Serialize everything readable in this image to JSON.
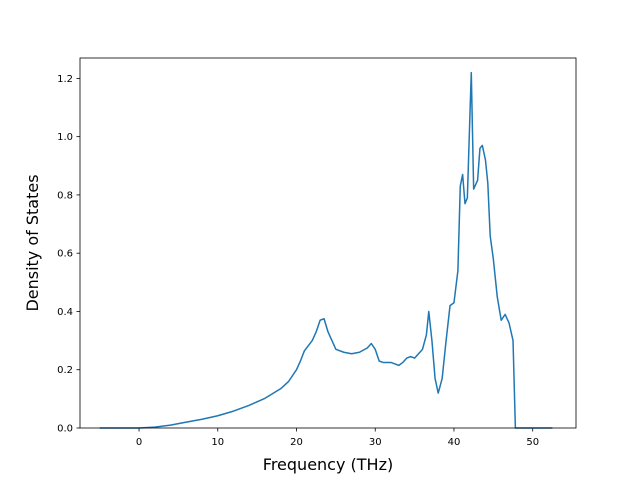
{
  "chart_data": {
    "type": "line",
    "title": "",
    "xlabel": "Frequency (THz)",
    "ylabel": "Density of States",
    "xlim": [
      -7.5,
      55.5
    ],
    "ylim": [
      0.0,
      1.27
    ],
    "xticks": [
      0,
      10,
      20,
      30,
      40,
      50
    ],
    "yticks": [
      0.0,
      0.2,
      0.4,
      0.6,
      0.8,
      1.0,
      1.2
    ],
    "xtick_labels": [
      "0",
      "10",
      "20",
      "30",
      "40",
      "50"
    ],
    "ytick_labels": [
      "0.0",
      "0.2",
      "0.4",
      "0.6",
      "0.8",
      "1.0",
      "1.2"
    ],
    "grid": false,
    "legend": null,
    "series": [
      {
        "color": "#1f77b4",
        "x": [
          -5,
          0,
          2,
          4,
          6,
          8,
          10,
          12,
          14,
          16,
          18,
          19,
          20,
          20.5,
          21,
          22,
          22.5,
          23,
          23.5,
          24,
          25,
          26,
          27,
          28,
          29,
          29.5,
          30,
          30.5,
          31,
          32,
          32.5,
          33,
          33.5,
          34,
          34.5,
          35,
          36,
          36.5,
          36.8,
          37.2,
          37.6,
          38,
          38.5,
          39,
          39.5,
          40,
          40.5,
          40.8,
          41.1,
          41.4,
          41.7,
          42,
          42.2,
          42.5,
          43,
          43.3,
          43.6,
          44,
          44.3,
          44.6,
          45,
          45.5,
          46,
          46.5,
          47,
          47.5,
          47.8,
          48,
          50,
          52.5
        ],
        "y": [
          0.0,
          0.0,
          0.003,
          0.01,
          0.02,
          0.03,
          0.042,
          0.058,
          0.078,
          0.102,
          0.135,
          0.16,
          0.2,
          0.23,
          0.265,
          0.3,
          0.33,
          0.37,
          0.375,
          0.33,
          0.27,
          0.26,
          0.255,
          0.26,
          0.275,
          0.29,
          0.27,
          0.23,
          0.225,
          0.225,
          0.22,
          0.215,
          0.225,
          0.24,
          0.245,
          0.24,
          0.27,
          0.32,
          0.4,
          0.3,
          0.17,
          0.12,
          0.17,
          0.3,
          0.42,
          0.43,
          0.54,
          0.83,
          0.87,
          0.77,
          0.79,
          1.05,
          1.22,
          0.82,
          0.85,
          0.96,
          0.97,
          0.92,
          0.84,
          0.66,
          0.58,
          0.45,
          0.37,
          0.39,
          0.36,
          0.3,
          0.0,
          0.0,
          0.0,
          0.0
        ]
      }
    ]
  }
}
